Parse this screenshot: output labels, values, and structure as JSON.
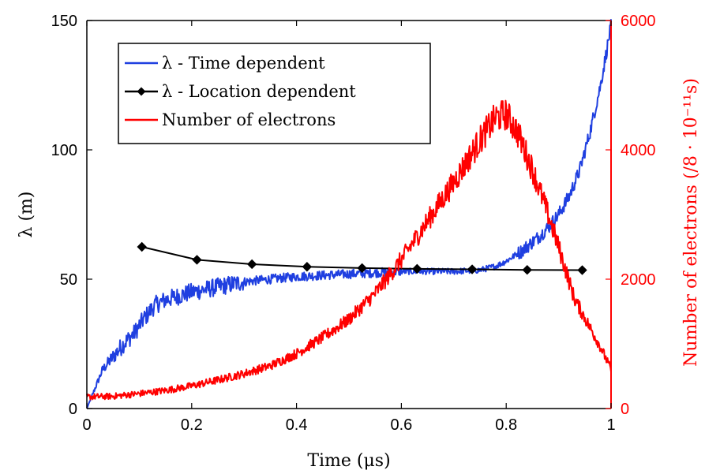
{
  "chart_data": {
    "type": "line",
    "xlabel": "Time (μs)",
    "ylabel_left": "λ (m)",
    "ylabel_right": "Number of electrons (/8 · 10⁻¹¹s)",
    "xlim": [
      0,
      1
    ],
    "ylim_left": [
      0,
      150
    ],
    "ylim_right": [
      0,
      6000
    ],
    "x_ticks": [
      "0",
      "0.2",
      "0.4",
      "0.6",
      "0.8",
      "1"
    ],
    "y_left_ticks": [
      "0",
      "50",
      "100",
      "150"
    ],
    "y_right_ticks": [
      "0",
      "2000",
      "4000",
      "6000"
    ],
    "legend_position": "top-left",
    "series": [
      {
        "name": "λ - Time dependent",
        "axis": "left",
        "color": "#1f3fe0",
        "noisy": true,
        "x": [
          0,
          0.01,
          0.02,
          0.03,
          0.05,
          0.07,
          0.09,
          0.11,
          0.13,
          0.15,
          0.2,
          0.25,
          0.3,
          0.35,
          0.4,
          0.45,
          0.5,
          0.55,
          0.6,
          0.65,
          0.7,
          0.75,
          0.78,
          0.8,
          0.83,
          0.86,
          0.88,
          0.9,
          0.92,
          0.94,
          0.96,
          0.98,
          1.0
        ],
        "y": [
          0,
          5,
          10,
          15,
          20,
          25,
          29,
          35,
          40,
          42,
          45,
          47,
          49,
          50,
          51,
          51.5,
          52,
          52.5,
          53,
          53,
          53,
          53.5,
          55,
          57,
          61,
          66,
          70,
          75,
          82,
          92,
          107,
          125,
          148
        ]
      },
      {
        "name": "λ - Location dependent",
        "axis": "left",
        "color": "#000000",
        "marker": "diamond",
        "x": [
          0.105,
          0.21,
          0.315,
          0.42,
          0.525,
          0.63,
          0.735,
          0.84,
          0.945
        ],
        "y": [
          62.5,
          57.5,
          55.8,
          54.8,
          54.3,
          54.0,
          53.8,
          53.6,
          53.5
        ]
      },
      {
        "name": "Number of electrons",
        "axis": "right",
        "color": "#ff0000",
        "noisy": true,
        "x": [
          0,
          0.05,
          0.1,
          0.15,
          0.2,
          0.25,
          0.3,
          0.35,
          0.4,
          0.45,
          0.5,
          0.55,
          0.6,
          0.65,
          0.7,
          0.75,
          0.78,
          0.8,
          0.82,
          0.85,
          0.88,
          0.9,
          0.93,
          0.96,
          0.98,
          1.0
        ],
        "y": [
          180,
          190,
          230,
          280,
          350,
          440,
          540,
          660,
          850,
          1100,
          1380,
          1780,
          2300,
          2900,
          3500,
          4150,
          4500,
          4550,
          4300,
          3700,
          3000,
          2500,
          1700,
          1250,
          950,
          600
        ]
      }
    ]
  }
}
